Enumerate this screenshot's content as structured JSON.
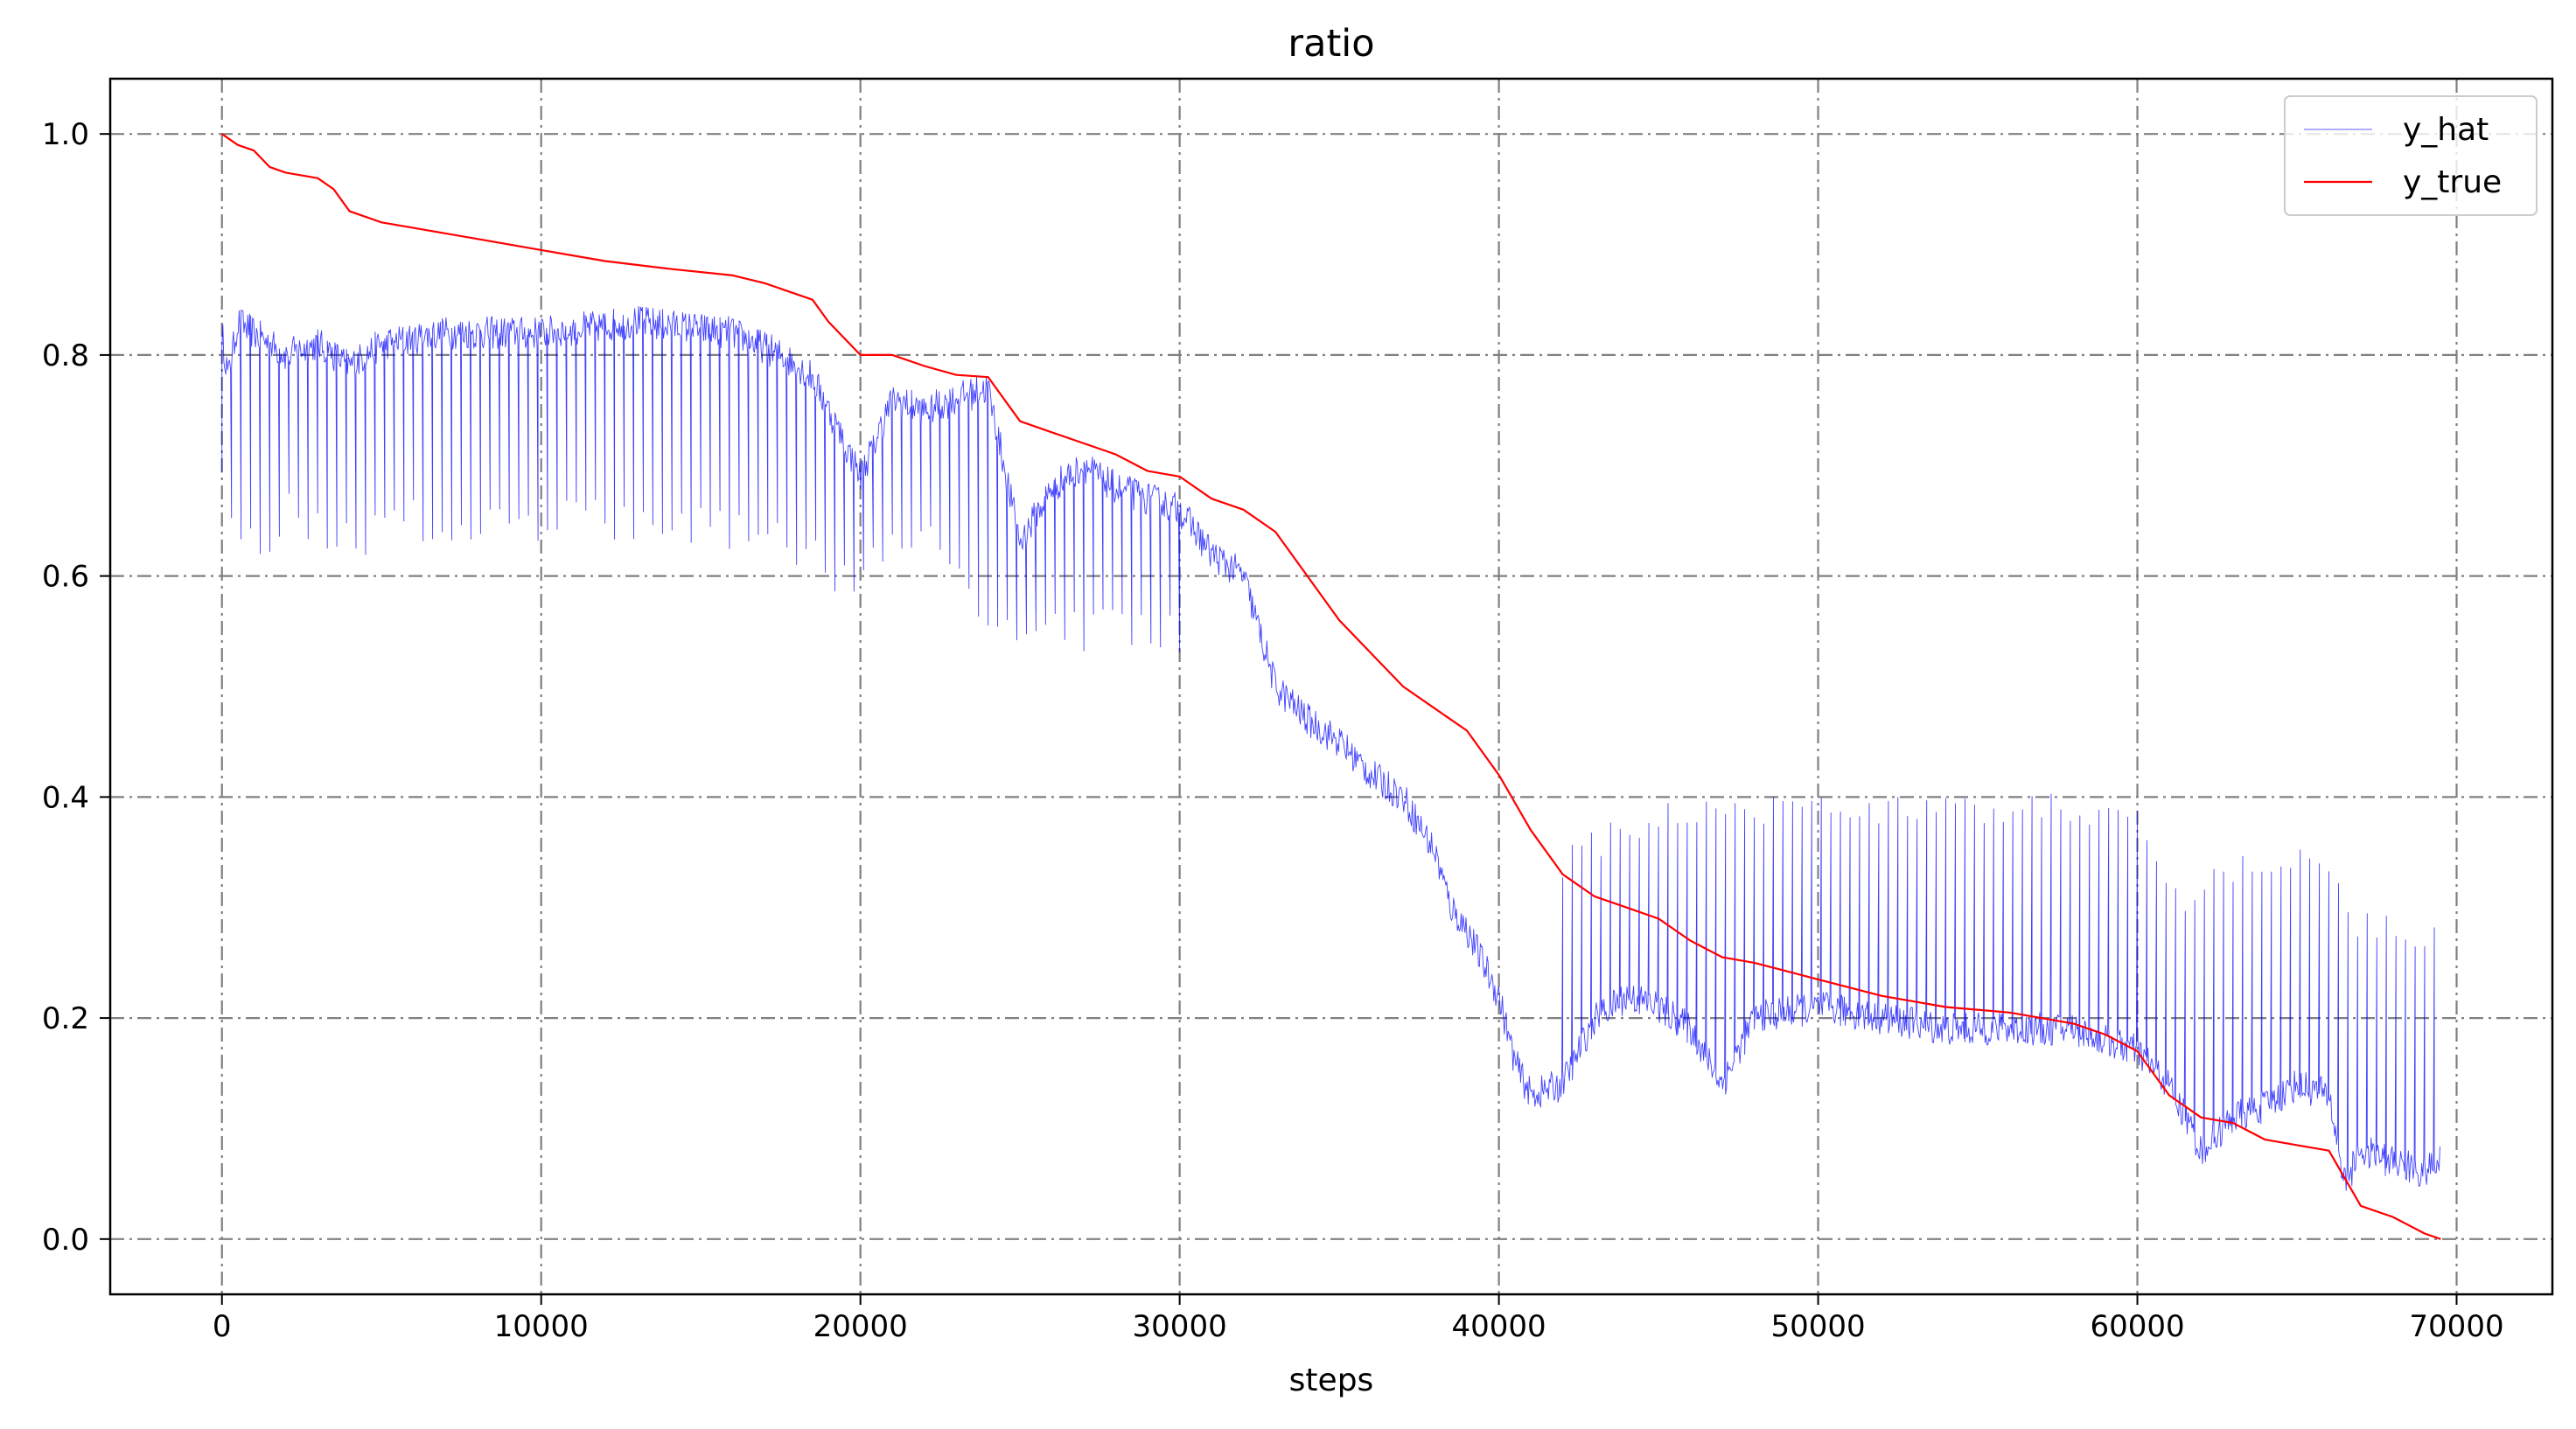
{
  "chart_data": {
    "type": "line",
    "title": "ratio",
    "xlabel": "steps",
    "ylabel": "",
    "xlim": [
      -3500,
      73000
    ],
    "ylim": [
      -0.05,
      1.05
    ],
    "xticks": [
      0,
      10000,
      20000,
      30000,
      40000,
      50000,
      60000,
      70000
    ],
    "xtick_labels": [
      "0",
      "10000",
      "20000",
      "30000",
      "40000",
      "50000",
      "60000",
      "70000"
    ],
    "yticks": [
      0.0,
      0.2,
      0.4,
      0.6,
      0.8,
      1.0
    ],
    "ytick_labels": [
      "0.0",
      "0.2",
      "0.4",
      "0.6",
      "0.8",
      "1.0"
    ],
    "grid": true,
    "legend_position": "top-right",
    "colors": {
      "y_hat": "#0000ff",
      "y_true": "#ff0000",
      "grid": "#808080"
    },
    "series": [
      {
        "name": "y_hat",
        "trend": {
          "x": [
            0,
            200,
            500,
            1000,
            2000,
            3000,
            4000,
            5000,
            7000,
            10000,
            13000,
            16000,
            17500,
            18500,
            19500,
            20000,
            21000,
            22000,
            23000,
            24000,
            25000,
            26000,
            27000,
            28000,
            29000,
            30000,
            31000,
            32000,
            33000,
            34000,
            35000,
            36000,
            37000,
            38000,
            38500,
            39000,
            40000,
            40500,
            41000,
            42000,
            43000,
            44000,
            45000,
            46000,
            47000,
            48000,
            50000,
            52000,
            54000,
            56000,
            57000,
            58000,
            59000,
            60000,
            61000,
            62000,
            63000,
            64000,
            65000,
            66000,
            66500,
            67000,
            68000,
            69000,
            69500
          ],
          "values": [
            0.82,
            0.78,
            0.83,
            0.82,
            0.8,
            0.81,
            0.79,
            0.81,
            0.82,
            0.82,
            0.83,
            0.82,
            0.8,
            0.78,
            0.72,
            0.69,
            0.76,
            0.75,
            0.76,
            0.77,
            0.63,
            0.68,
            0.7,
            0.68,
            0.67,
            0.66,
            0.62,
            0.6,
            0.5,
            0.47,
            0.45,
            0.42,
            0.4,
            0.35,
            0.3,
            0.28,
            0.22,
            0.16,
            0.13,
            0.14,
            0.2,
            0.22,
            0.21,
            0.19,
            0.14,
            0.2,
            0.21,
            0.2,
            0.19,
            0.19,
            0.19,
            0.19,
            0.18,
            0.17,
            0.14,
            0.08,
            0.11,
            0.12,
            0.14,
            0.13,
            0.05,
            0.08,
            0.07,
            0.06,
            0.07
          ]
        },
        "spike_bottom": {
          "x": [
            0,
            1000,
            2000,
            3000,
            4000,
            6000,
            10000,
            14000,
            18000,
            19500,
            20000,
            21000,
            23000,
            24000,
            25000,
            30000
          ],
          "values": [
            0.68,
            0.62,
            0.66,
            0.65,
            0.63,
            0.65,
            0.65,
            0.65,
            0.63,
            0.6,
            0.6,
            0.62,
            0.63,
            0.55,
            0.55,
            0.55
          ]
        },
        "spike_top": {
          "x": [
            42000,
            44000,
            46000,
            50000,
            55000,
            58000,
            60000,
            61000,
            62000,
            63000,
            64000,
            65000,
            66000,
            67000,
            68000,
            69500
          ],
          "values": [
            0.34,
            0.37,
            0.39,
            0.39,
            0.39,
            0.39,
            0.38,
            0.3,
            0.32,
            0.33,
            0.34,
            0.34,
            0.34,
            0.28,
            0.28,
            0.27
          ]
        }
      },
      {
        "name": "y_true",
        "x": [
          0,
          500,
          1000,
          1500,
          2000,
          3000,
          3500,
          4000,
          5000,
          6000,
          8000,
          10000,
          12000,
          14000,
          16000,
          17000,
          18500,
          19000,
          20000,
          21000,
          22000,
          23000,
          24000,
          25000,
          26000,
          27000,
          28000,
          29000,
          30000,
          31000,
          32000,
          33000,
          34000,
          35000,
          36000,
          37000,
          38000,
          39000,
          40000,
          41000,
          42000,
          43000,
          44000,
          45000,
          46000,
          47000,
          48000,
          50000,
          52000,
          54000,
          56000,
          58000,
          59000,
          60000,
          61000,
          62000,
          63000,
          64000,
          65000,
          66000,
          67000,
          68000,
          69000,
          69500
        ],
        "values": [
          1.0,
          0.99,
          0.985,
          0.97,
          0.965,
          0.96,
          0.95,
          0.93,
          0.92,
          0.915,
          0.905,
          0.895,
          0.885,
          0.878,
          0.872,
          0.865,
          0.85,
          0.83,
          0.8,
          0.8,
          0.79,
          0.782,
          0.78,
          0.74,
          0.73,
          0.72,
          0.71,
          0.695,
          0.69,
          0.67,
          0.66,
          0.64,
          0.6,
          0.56,
          0.53,
          0.5,
          0.48,
          0.46,
          0.42,
          0.37,
          0.33,
          0.31,
          0.3,
          0.29,
          0.27,
          0.255,
          0.25,
          0.235,
          0.22,
          0.21,
          0.205,
          0.195,
          0.185,
          0.17,
          0.13,
          0.11,
          0.105,
          0.09,
          0.085,
          0.08,
          0.03,
          0.02,
          0.005,
          0.0
        ]
      }
    ]
  }
}
